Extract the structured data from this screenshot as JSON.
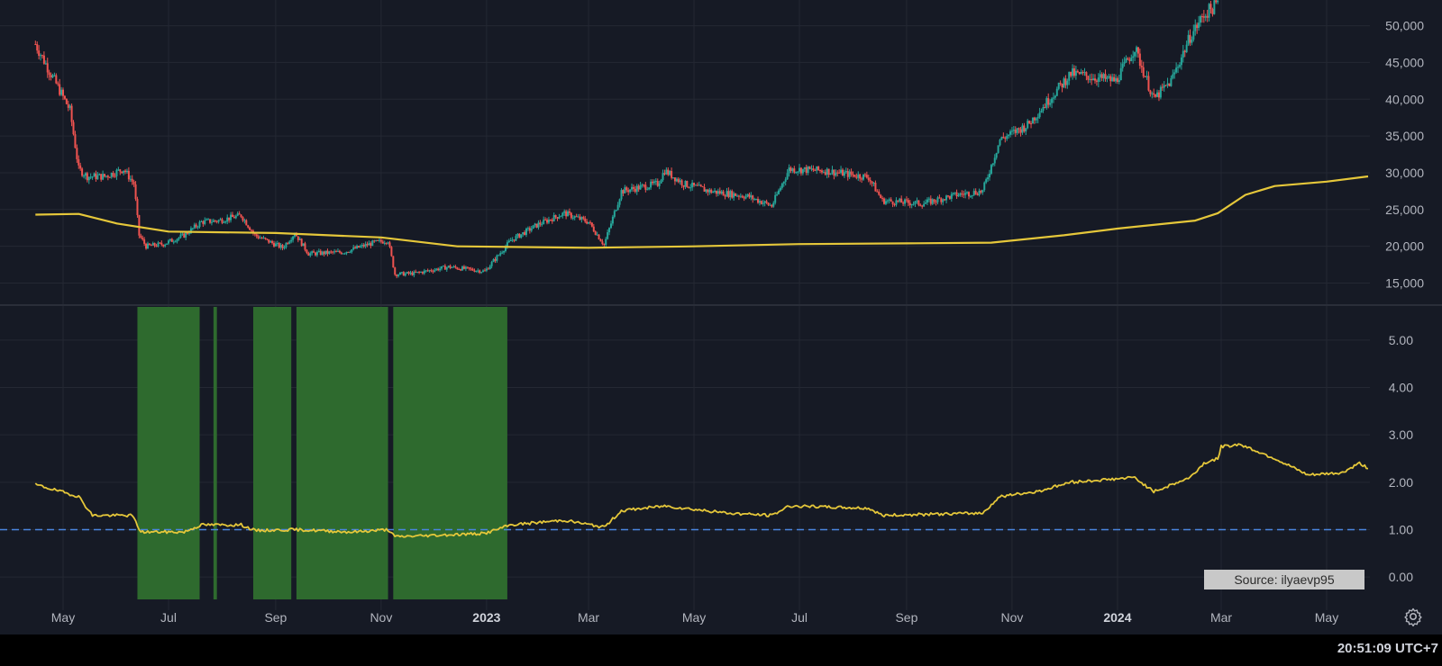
{
  "statusbar": {
    "clock": "20:51:09 UTC+7"
  },
  "colors": {
    "background": "#161a25",
    "grid": "#242833",
    "up_candle": "#26a69a",
    "down_candle": "#ef5350",
    "ma_line": "#e5c73a",
    "ratio_line": "#e5c73a",
    "green_zone": "#2e6a2e",
    "baseline_dash": "#4a86e0",
    "axis_text": "#b2b5be"
  },
  "x_axis": {
    "labels": [
      {
        "label": "May",
        "date": "2022-05-01"
      },
      {
        "label": "Jul",
        "date": "2022-07-01"
      },
      {
        "label": "Sep",
        "date": "2022-09-01"
      },
      {
        "label": "Nov",
        "date": "2022-11-01"
      },
      {
        "label": "2023",
        "date": "2023-01-01",
        "bold": true
      },
      {
        "label": "Mar",
        "date": "2023-03-01"
      },
      {
        "label": "May",
        "date": "2023-05-01"
      },
      {
        "label": "Jul",
        "date": "2023-07-01"
      },
      {
        "label": "Sep",
        "date": "2023-09-01"
      },
      {
        "label": "Nov",
        "date": "2023-11-01"
      },
      {
        "label": "2024",
        "date": "2024-01-01",
        "bold": true
      },
      {
        "label": "Mar",
        "date": "2024-03-01"
      },
      {
        "label": "May",
        "date": "2024-05-01"
      }
    ]
  },
  "chart_data": [
    {
      "type": "candlestick",
      "pane": "price",
      "y_ticks": [
        "15,000",
        "20,000",
        "25,000",
        "30,000",
        "35,000",
        "40,000",
        "45,000",
        "50,000"
      ],
      "ylim": [
        12000,
        53500
      ],
      "price_path": [
        [
          "2022-04-15",
          47500
        ],
        [
          "2022-04-25",
          43000
        ],
        [
          "2022-05-05",
          38500
        ],
        [
          "2022-05-10",
          30500
        ],
        [
          "2022-05-15",
          29500
        ],
        [
          "2022-05-25",
          29500
        ],
        [
          "2022-06-05",
          30500
        ],
        [
          "2022-06-11",
          28500
        ],
        [
          "2022-06-14",
          21500
        ],
        [
          "2022-06-18",
          20000
        ],
        [
          "2022-06-28",
          20300
        ],
        [
          "2022-07-10",
          21500
        ],
        [
          "2022-07-20",
          23300
        ],
        [
          "2022-07-30",
          23500
        ],
        [
          "2022-08-12",
          24200
        ],
        [
          "2022-08-20",
          21500
        ],
        [
          "2022-09-05",
          19800
        ],
        [
          "2022-09-12",
          21800
        ],
        [
          "2022-09-20",
          19000
        ],
        [
          "2022-10-10",
          19200
        ],
        [
          "2022-10-28",
          20500
        ],
        [
          "2022-11-05",
          20800
        ],
        [
          "2022-11-09",
          16200
        ],
        [
          "2022-11-20",
          16300
        ],
        [
          "2022-12-10",
          17200
        ],
        [
          "2022-12-31",
          16600
        ],
        [
          "2023-01-15",
          20800
        ],
        [
          "2023-01-31",
          23000
        ],
        [
          "2023-02-15",
          24500
        ],
        [
          "2023-03-01",
          23300
        ],
        [
          "2023-03-10",
          20200
        ],
        [
          "2023-03-20",
          27500
        ],
        [
          "2023-04-10",
          28500
        ],
        [
          "2023-04-14",
          30300
        ],
        [
          "2023-04-25",
          28500
        ],
        [
          "2023-05-10",
          27500
        ],
        [
          "2023-06-01",
          26800
        ],
        [
          "2023-06-15",
          25500
        ],
        [
          "2023-06-25",
          30500
        ],
        [
          "2023-07-15",
          30300
        ],
        [
          "2023-08-10",
          29400
        ],
        [
          "2023-08-18",
          26200
        ],
        [
          "2023-09-10",
          25800
        ],
        [
          "2023-09-30",
          27000
        ],
        [
          "2023-10-15",
          27500
        ],
        [
          "2023-10-25",
          34500
        ],
        [
          "2023-11-10",
          36500
        ],
        [
          "2023-12-05",
          43500
        ],
        [
          "2023-12-31",
          42500
        ],
        [
          "2024-01-11",
          47000
        ],
        [
          "2024-01-22",
          40000
        ],
        [
          "2024-02-01",
          42500
        ],
        [
          "2024-02-12",
          48500
        ],
        [
          "2024-02-20",
          51500
        ],
        [
          "2024-02-28",
          53000
        ]
      ],
      "moving_average": [
        [
          "2022-04-15",
          24300
        ],
        [
          "2022-05-10",
          24400
        ],
        [
          "2022-06-01",
          23100
        ],
        [
          "2022-07-01",
          22000
        ],
        [
          "2022-09-01",
          21800
        ],
        [
          "2022-11-01",
          21200
        ],
        [
          "2022-12-15",
          20000
        ],
        [
          "2023-03-01",
          19800
        ],
        [
          "2023-05-01",
          20000
        ],
        [
          "2023-07-01",
          20300
        ],
        [
          "2023-09-01",
          20400
        ],
        [
          "2023-10-20",
          20500
        ],
        [
          "2023-12-01",
          21500
        ],
        [
          "2024-01-01",
          22400
        ],
        [
          "2024-02-15",
          23500
        ],
        [
          "2024-02-28",
          24500
        ],
        [
          "2024-03-15",
          27000
        ],
        [
          "2024-04-01",
          28200
        ],
        [
          "2024-05-01",
          28800
        ],
        [
          "2024-05-25",
          29500
        ]
      ]
    },
    {
      "type": "line",
      "pane": "indicator",
      "y_ticks": [
        "0.00",
        "1.00",
        "2.00",
        "3.00",
        "4.00",
        "5.00"
      ],
      "ylim": [
        -0.7,
        5.7
      ],
      "baseline": 1.0,
      "series": [
        {
          "values": [
            [
              "2022-04-15",
              1.95
            ],
            [
              "2022-05-10",
              1.7
            ],
            [
              "2022-05-18",
              1.3
            ],
            [
              "2022-06-10",
              1.3
            ],
            [
              "2022-06-15",
              0.95
            ],
            [
              "2022-07-10",
              0.95
            ],
            [
              "2022-07-20",
              1.1
            ],
            [
              "2022-08-12",
              1.1
            ],
            [
              "2022-08-20",
              0.98
            ],
            [
              "2022-09-12",
              1.0
            ],
            [
              "2022-10-15",
              0.95
            ],
            [
              "2022-11-05",
              1.0
            ],
            [
              "2022-11-09",
              0.85
            ],
            [
              "2022-12-31",
              0.92
            ],
            [
              "2023-01-15",
              1.1
            ],
            [
              "2023-02-15",
              1.2
            ],
            [
              "2023-03-10",
              1.05
            ],
            [
              "2023-03-20",
              1.4
            ],
            [
              "2023-04-14",
              1.5
            ],
            [
              "2023-05-20",
              1.35
            ],
            [
              "2023-06-15",
              1.3
            ],
            [
              "2023-06-25",
              1.5
            ],
            [
              "2023-08-10",
              1.45
            ],
            [
              "2023-08-18",
              1.3
            ],
            [
              "2023-10-15",
              1.35
            ],
            [
              "2023-10-25",
              1.7
            ],
            [
              "2023-11-15",
              1.8
            ],
            [
              "2023-12-05",
              2.0
            ],
            [
              "2024-01-11",
              2.1
            ],
            [
              "2024-01-22",
              1.8
            ],
            [
              "2024-02-12",
              2.1
            ],
            [
              "2024-02-20",
              2.4
            ],
            [
              "2024-02-28",
              2.5
            ],
            [
              "2024-03-01",
              2.75
            ],
            [
              "2024-03-12",
              2.8
            ],
            [
              "2024-04-01",
              2.5
            ],
            [
              "2024-04-20",
              2.15
            ],
            [
              "2024-05-10",
              2.2
            ],
            [
              "2024-05-20",
              2.4
            ],
            [
              "2024-05-25",
              2.3
            ]
          ]
        }
      ],
      "shaded_zones": [
        [
          "2022-06-13",
          "2022-07-19"
        ],
        [
          "2022-07-27",
          "2022-07-29"
        ],
        [
          "2022-08-19",
          "2022-09-10"
        ],
        [
          "2022-09-13",
          "2022-11-05"
        ],
        [
          "2022-11-08",
          "2023-01-13"
        ]
      ]
    }
  ],
  "watermark": "Source: ilyaevp95",
  "settings_icon": "gear-icon"
}
